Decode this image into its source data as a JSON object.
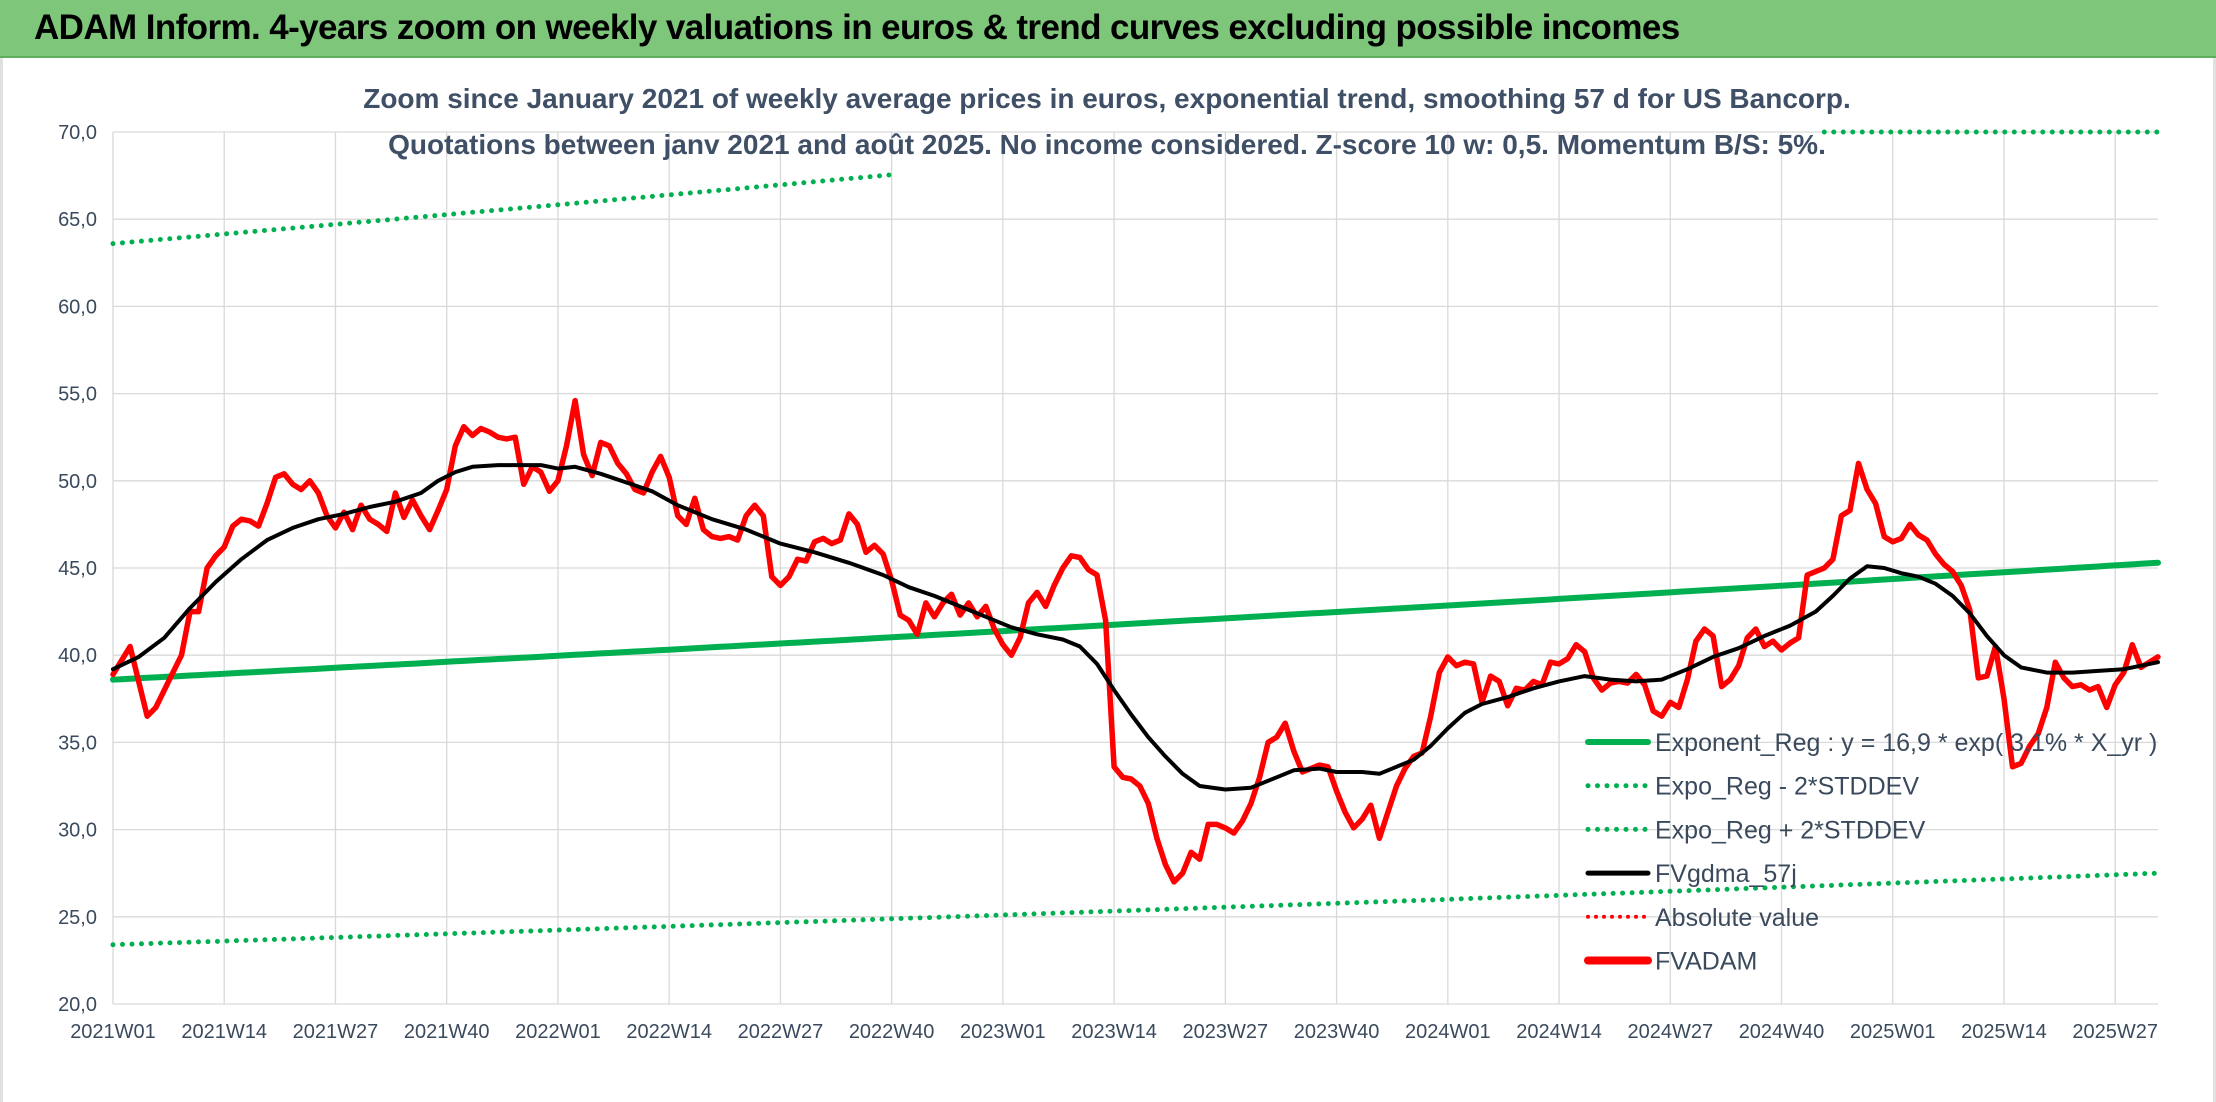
{
  "header": {
    "title": "ADAM Inform. 4-years zoom on weekly valuations in euros & trend curves excluding possible incomes"
  },
  "colors": {
    "header_bg": "#7dc67a",
    "exponent_reg": "#00b050",
    "band": "#00b050",
    "fvgdma": "#000000",
    "absolute_value": "#ff0000",
    "fvadam": "#ff0000",
    "grid": "#d9d9d9"
  },
  "chart_data": {
    "type": "line",
    "subtitle_lines": [
      "Zoom since January 2021 of weekly average prices in euros, exponential trend, smoothing 57 d for US Bancorp.",
      "Quotations between janv 2021 and août 2025. No income considered. Z-score 10 w: 0,5. Momentum B/S: 5%."
    ],
    "xlabel": "",
    "ylabel": "",
    "ylim": [
      20,
      70
    ],
    "y_ticks": [
      "20,0",
      "25,0",
      "30,0",
      "35,0",
      "40,0",
      "45,0",
      "50,0",
      "55,0",
      "60,0",
      "65,0",
      "70,0"
    ],
    "x_ticks": [
      "2021W01",
      "2021W14",
      "2021W27",
      "2021W40",
      "2022W01",
      "2022W14",
      "2022W27",
      "2022W40",
      "2023W01",
      "2023W14",
      "2023W27",
      "2023W40",
      "2024W01",
      "2024W14",
      "2024W27",
      "2024W40",
      "2025W01",
      "2025W14",
      "2025W27"
    ],
    "weeks_per_tick": 13,
    "total_weeks": 240,
    "grid": true,
    "legend_position": "bottom-right",
    "legend": [
      {
        "key": "exponent_reg",
        "label": "Exponent_Reg : y = 16,9 * exp( 3,1% *  X_yr )",
        "style": "solid-thick"
      },
      {
        "key": "minus_2sd",
        "label": "Expo_Reg - 2*STDDEV",
        "style": "dotted"
      },
      {
        "key": "plus_2sd",
        "label": "Expo_Reg + 2*STDDEV",
        "style": "dotted"
      },
      {
        "key": "fvgdma",
        "label": "FVgdma_57j",
        "style": "solid"
      },
      {
        "key": "absolute_value",
        "label": "Absolute value",
        "style": "dotted-red"
      },
      {
        "key": "fvadam",
        "label": "FVADAM",
        "style": "solid-red-thick"
      }
    ],
    "series": {
      "exponent_reg": {
        "start": 38.6,
        "end": 45.3
      },
      "minus_2sd": {
        "start": 23.4,
        "end": 27.5
      },
      "plus_2sd": {
        "start": 63.6,
        "end": 74.5,
        "clip_max": 70
      },
      "fvadam": [
        [
          0,
          38.9
        ],
        [
          2,
          40.5
        ],
        [
          4,
          36.5
        ],
        [
          5,
          37.0
        ],
        [
          7,
          39.0
        ],
        [
          8,
          40.0
        ],
        [
          9,
          42.5
        ],
        [
          10,
          42.5
        ],
        [
          11,
          45.0
        ],
        [
          12,
          45.7
        ],
        [
          13,
          46.2
        ],
        [
          14,
          47.4
        ],
        [
          15,
          47.8
        ],
        [
          16,
          47.7
        ],
        [
          17,
          47.4
        ],
        [
          18,
          48.7
        ],
        [
          19,
          50.2
        ],
        [
          20,
          50.4
        ],
        [
          21,
          49.8
        ],
        [
          22,
          49.5
        ],
        [
          23,
          50.0
        ],
        [
          24,
          49.3
        ],
        [
          25,
          48.0
        ],
        [
          26,
          47.3
        ],
        [
          27,
          48.2
        ],
        [
          28,
          47.2
        ],
        [
          29,
          48.6
        ],
        [
          30,
          47.8
        ],
        [
          31,
          47.5
        ],
        [
          32,
          47.1
        ],
        [
          33,
          49.3
        ],
        [
          34,
          47.9
        ],
        [
          35,
          48.9
        ],
        [
          36,
          48.0
        ],
        [
          37,
          47.2
        ],
        [
          38,
          48.3
        ],
        [
          39,
          49.5
        ],
        [
          40,
          52.0
        ],
        [
          41,
          53.1
        ],
        [
          42,
          52.6
        ],
        [
          43,
          53.0
        ],
        [
          44,
          52.8
        ],
        [
          45,
          52.5
        ],
        [
          46,
          52.4
        ],
        [
          47,
          52.5
        ],
        [
          48,
          49.8
        ],
        [
          49,
          50.8
        ],
        [
          50,
          50.5
        ],
        [
          51,
          49.4
        ],
        [
          52,
          50.0
        ],
        [
          53,
          52.0
        ],
        [
          54,
          54.6
        ],
        [
          55,
          51.5
        ],
        [
          56,
          50.3
        ],
        [
          57,
          52.2
        ],
        [
          58,
          52.0
        ],
        [
          59,
          51.0
        ],
        [
          60,
          50.4
        ],
        [
          61,
          49.5
        ],
        [
          62,
          49.3
        ],
        [
          63,
          50.5
        ],
        [
          64,
          51.4
        ],
        [
          65,
          50.2
        ],
        [
          66,
          48.0
        ],
        [
          67,
          47.5
        ],
        [
          68,
          49.0
        ],
        [
          69,
          47.2
        ],
        [
          70,
          46.8
        ],
        [
          71,
          46.7
        ],
        [
          72,
          46.8
        ],
        [
          73,
          46.6
        ],
        [
          74,
          48.0
        ],
        [
          75,
          48.6
        ],
        [
          76,
          48.0
        ],
        [
          77,
          44.5
        ],
        [
          78,
          44.0
        ],
        [
          79,
          44.5
        ],
        [
          80,
          45.5
        ],
        [
          81,
          45.4
        ],
        [
          82,
          46.5
        ],
        [
          83,
          46.7
        ],
        [
          84,
          46.4
        ],
        [
          85,
          46.6
        ],
        [
          86,
          48.1
        ],
        [
          87,
          47.5
        ],
        [
          88,
          45.9
        ],
        [
          89,
          46.3
        ],
        [
          90,
          45.8
        ],
        [
          91,
          44.3
        ],
        [
          92,
          42.3
        ],
        [
          93,
          42.0
        ],
        [
          94,
          41.2
        ],
        [
          95,
          43.0
        ],
        [
          96,
          42.2
        ],
        [
          97,
          43.0
        ],
        [
          98,
          43.5
        ],
        [
          99,
          42.3
        ],
        [
          100,
          43.0
        ],
        [
          101,
          42.2
        ],
        [
          102,
          42.8
        ],
        [
          103,
          41.5
        ],
        [
          104,
          40.6
        ],
        [
          105,
          40.0
        ],
        [
          106,
          41.0
        ],
        [
          107,
          43.0
        ],
        [
          108,
          43.6
        ],
        [
          109,
          42.8
        ],
        [
          110,
          44.0
        ],
        [
          111,
          45.0
        ],
        [
          112,
          45.7
        ],
        [
          113,
          45.6
        ],
        [
          114,
          44.9
        ],
        [
          115,
          44.6
        ],
        [
          116,
          42.0
        ],
        [
          117,
          33.6
        ],
        [
          118,
          33.0
        ],
        [
          119,
          32.9
        ],
        [
          120,
          32.5
        ],
        [
          121,
          31.5
        ],
        [
          122,
          29.5
        ],
        [
          123,
          28.0
        ],
        [
          124,
          27.0
        ],
        [
          125,
          27.5
        ],
        [
          126,
          28.7
        ],
        [
          127,
          28.3
        ],
        [
          128,
          30.3
        ],
        [
          129,
          30.3
        ],
        [
          130,
          30.1
        ],
        [
          131,
          29.8
        ],
        [
          132,
          30.5
        ],
        [
          133,
          31.5
        ],
        [
          134,
          33.0
        ],
        [
          135,
          35.0
        ],
        [
          136,
          35.3
        ],
        [
          137,
          36.1
        ],
        [
          138,
          34.5
        ],
        [
          139,
          33.3
        ],
        [
          140,
          33.5
        ],
        [
          141,
          33.7
        ],
        [
          142,
          33.6
        ],
        [
          143,
          32.2
        ],
        [
          144,
          31.0
        ],
        [
          145,
          30.1
        ],
        [
          146,
          30.6
        ],
        [
          147,
          31.4
        ],
        [
          148,
          29.5
        ],
        [
          149,
          31.0
        ],
        [
          150,
          32.5
        ],
        [
          151,
          33.5
        ],
        [
          152,
          34.2
        ],
        [
          153,
          34.4
        ],
        [
          154,
          36.5
        ],
        [
          155,
          39.0
        ],
        [
          156,
          39.9
        ],
        [
          157,
          39.4
        ],
        [
          158,
          39.6
        ],
        [
          159,
          39.5
        ],
        [
          160,
          37.3
        ],
        [
          161,
          38.8
        ],
        [
          162,
          38.5
        ],
        [
          163,
          37.1
        ],
        [
          164,
          38.1
        ],
        [
          165,
          38.0
        ],
        [
          166,
          38.5
        ],
        [
          167,
          38.3
        ],
        [
          168,
          39.6
        ],
        [
          169,
          39.5
        ],
        [
          170,
          39.8
        ],
        [
          171,
          40.6
        ],
        [
          172,
          40.2
        ],
        [
          173,
          38.7
        ],
        [
          174,
          38.0
        ],
        [
          175,
          38.4
        ],
        [
          176,
          38.5
        ],
        [
          177,
          38.4
        ],
        [
          178,
          38.9
        ],
        [
          179,
          38.3
        ],
        [
          180,
          36.8
        ],
        [
          181,
          36.5
        ],
        [
          182,
          37.3
        ],
        [
          183,
          37.0
        ],
        [
          184,
          38.6
        ],
        [
          185,
          40.8
        ],
        [
          186,
          41.5
        ],
        [
          187,
          41.1
        ],
        [
          188,
          38.2
        ],
        [
          189,
          38.6
        ],
        [
          190,
          39.4
        ],
        [
          191,
          41.0
        ],
        [
          192,
          41.5
        ],
        [
          193,
          40.5
        ],
        [
          194,
          40.8
        ],
        [
          195,
          40.3
        ],
        [
          196,
          40.7
        ],
        [
          197,
          41.0
        ],
        [
          198,
          44.6
        ],
        [
          199,
          44.8
        ],
        [
          200,
          45.0
        ],
        [
          201,
          45.5
        ],
        [
          202,
          48.0
        ],
        [
          203,
          48.3
        ],
        [
          204,
          51.0
        ],
        [
          205,
          49.5
        ],
        [
          206,
          48.7
        ],
        [
          207,
          46.8
        ],
        [
          208,
          46.5
        ],
        [
          209,
          46.7
        ],
        [
          210,
          47.5
        ],
        [
          211,
          46.9
        ],
        [
          212,
          46.6
        ],
        [
          213,
          45.8
        ],
        [
          214,
          45.2
        ],
        [
          215,
          44.8
        ],
        [
          216,
          44.0
        ],
        [
          217,
          42.6
        ],
        [
          218,
          38.7
        ],
        [
          219,
          38.8
        ],
        [
          220,
          40.5
        ],
        [
          221,
          37.5
        ],
        [
          222,
          33.6
        ],
        [
          223,
          33.8
        ],
        [
          224,
          34.8
        ],
        [
          225,
          35.5
        ],
        [
          226,
          37.0
        ],
        [
          227,
          39.6
        ],
        [
          228,
          38.7
        ],
        [
          229,
          38.2
        ],
        [
          230,
          38.3
        ],
        [
          231,
          38.0
        ],
        [
          232,
          38.2
        ],
        [
          233,
          37.0
        ],
        [
          234,
          38.3
        ],
        [
          235,
          39.0
        ],
        [
          236,
          40.6
        ],
        [
          237,
          39.3
        ],
        [
          238,
          39.6
        ],
        [
          239,
          39.9
        ]
      ],
      "fvgdma": [
        [
          0,
          39.2
        ],
        [
          3,
          39.9
        ],
        [
          6,
          41.0
        ],
        [
          9,
          42.7
        ],
        [
          12,
          44.2
        ],
        [
          15,
          45.5
        ],
        [
          18,
          46.6
        ],
        [
          21,
          47.3
        ],
        [
          24,
          47.8
        ],
        [
          27,
          48.1
        ],
        [
          30,
          48.5
        ],
        [
          33,
          48.8
        ],
        [
          36,
          49.3
        ],
        [
          38,
          50.0
        ],
        [
          40,
          50.5
        ],
        [
          42,
          50.8
        ],
        [
          45,
          50.9
        ],
        [
          50,
          50.9
        ],
        [
          52,
          50.7
        ],
        [
          54,
          50.8
        ],
        [
          57,
          50.4
        ],
        [
          60,
          49.9
        ],
        [
          63,
          49.4
        ],
        [
          66,
          48.6
        ],
        [
          70,
          47.8
        ],
        [
          74,
          47.2
        ],
        [
          78,
          46.4
        ],
        [
          82,
          45.9
        ],
        [
          86,
          45.3
        ],
        [
          90,
          44.6
        ],
        [
          93,
          43.9
        ],
        [
          96,
          43.4
        ],
        [
          99,
          42.8
        ],
        [
          102,
          42.2
        ],
        [
          105,
          41.6
        ],
        [
          108,
          41.2
        ],
        [
          111,
          40.9
        ],
        [
          113,
          40.5
        ],
        [
          115,
          39.5
        ],
        [
          117,
          38.0
        ],
        [
          119,
          36.6
        ],
        [
          121,
          35.3
        ],
        [
          123,
          34.2
        ],
        [
          125,
          33.2
        ],
        [
          127,
          32.5
        ],
        [
          130,
          32.3
        ],
        [
          133,
          32.4
        ],
        [
          136,
          33.0
        ],
        [
          138,
          33.4
        ],
        [
          141,
          33.5
        ],
        [
          143,
          33.3
        ],
        [
          146,
          33.3
        ],
        [
          148,
          33.2
        ],
        [
          150,
          33.6
        ],
        [
          152,
          34.0
        ],
        [
          154,
          34.8
        ],
        [
          156,
          35.8
        ],
        [
          158,
          36.7
        ],
        [
          160,
          37.2
        ],
        [
          163,
          37.6
        ],
        [
          166,
          38.1
        ],
        [
          169,
          38.5
        ],
        [
          172,
          38.8
        ],
        [
          175,
          38.6
        ],
        [
          178,
          38.5
        ],
        [
          181,
          38.6
        ],
        [
          184,
          39.2
        ],
        [
          187,
          39.9
        ],
        [
          190,
          40.4
        ],
        [
          193,
          41.1
        ],
        [
          196,
          41.7
        ],
        [
          199,
          42.5
        ],
        [
          201,
          43.4
        ],
        [
          203,
          44.4
        ],
        [
          205,
          45.1
        ],
        [
          207,
          45.0
        ],
        [
          209,
          44.7
        ],
        [
          211,
          44.5
        ],
        [
          213,
          44.1
        ],
        [
          215,
          43.4
        ],
        [
          217,
          42.4
        ],
        [
          219,
          41.1
        ],
        [
          221,
          40.0
        ],
        [
          223,
          39.3
        ],
        [
          226,
          39.0
        ],
        [
          229,
          39.0
        ],
        [
          232,
          39.1
        ],
        [
          235,
          39.2
        ],
        [
          239,
          39.6
        ]
      ]
    }
  }
}
